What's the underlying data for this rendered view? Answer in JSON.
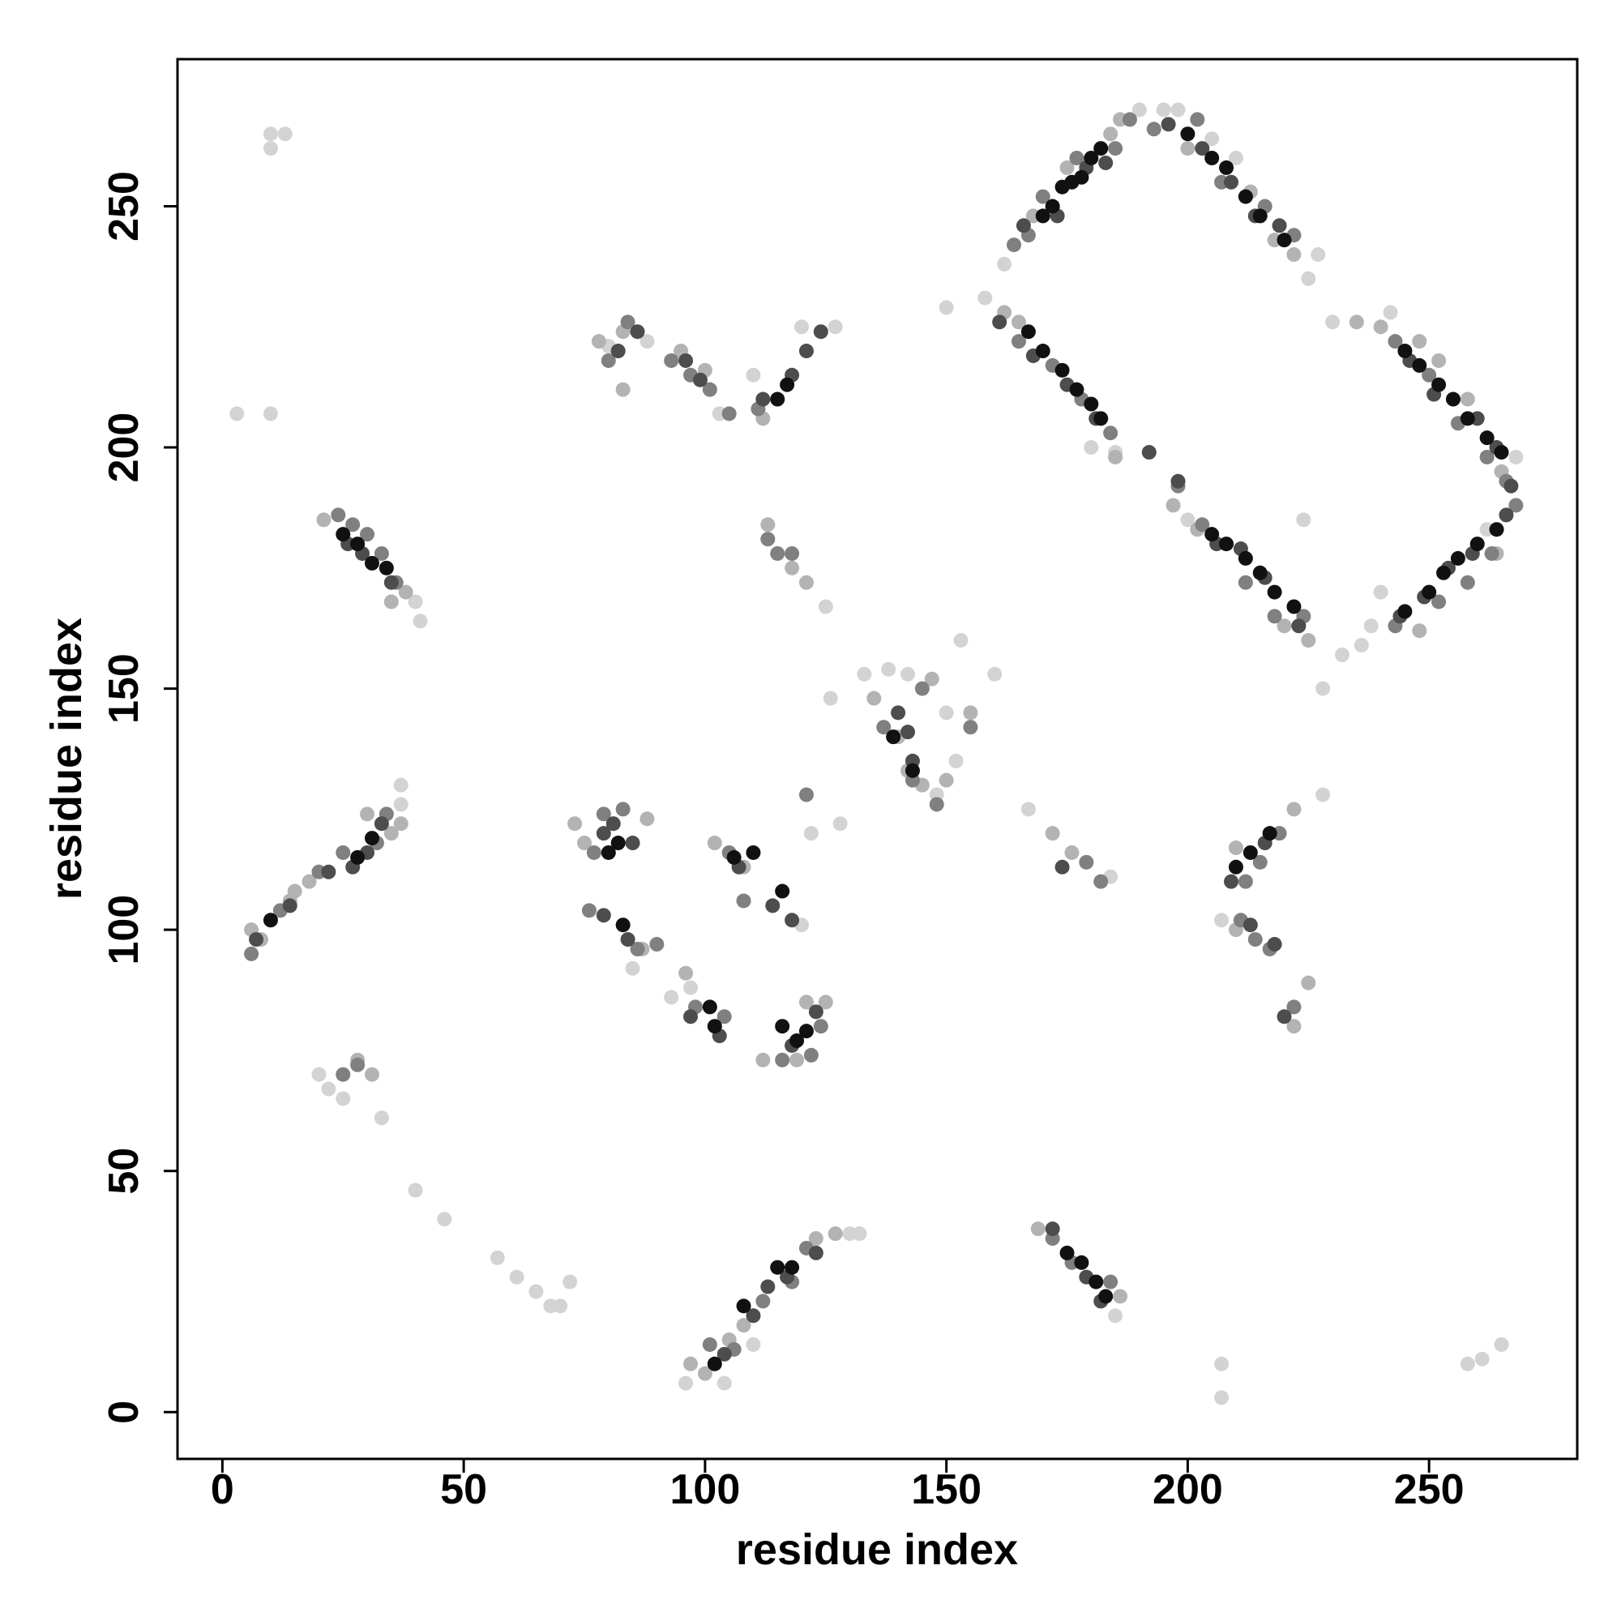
{
  "chart_data": {
    "type": "scatter",
    "xlabel": "residue index",
    "ylabel": "residue index",
    "xlim": [
      -9.3,
      280.7
    ],
    "ylim": [
      -9.7,
      280.5
    ],
    "xticks": [
      0,
      50,
      100,
      150,
      200,
      250
    ],
    "yticks": [
      0,
      50,
      100,
      150,
      200,
      250
    ],
    "series": [
      {
        "color": "#d3d3d3",
        "x": [
          10,
          13,
          10,
          3,
          10,
          37,
          37,
          40,
          41,
          20,
          22,
          25,
          33,
          40,
          46,
          57,
          61,
          65,
          68,
          70,
          72,
          80,
          88,
          85,
          93,
          97,
          103,
          110,
          125,
          127,
          128,
          130,
          132,
          133,
          138,
          142,
          150,
          153,
          160,
          158,
          162,
          150,
          152,
          148,
          180,
          185,
          190,
          195,
          198,
          205,
          210,
          225,
          227,
          230,
          232,
          228,
          236,
          238,
          242,
          262,
          268,
          207,
          207,
          258,
          261,
          265,
          240,
          122,
          126,
          200,
          207,
          167,
          184,
          96,
          104,
          110,
          120,
          228,
          185,
          120,
          224
        ],
        "y": [
          265,
          265,
          262,
          207,
          207,
          130,
          126,
          168,
          164,
          70,
          67,
          65,
          61,
          46,
          40,
          32,
          28,
          25,
          22,
          22,
          27,
          221,
          222,
          92,
          86,
          88,
          207,
          215,
          167,
          225,
          122,
          37,
          37,
          153,
          154,
          153,
          229,
          160,
          153,
          231,
          238,
          145,
          135,
          128,
          200,
          199,
          270,
          270,
          270,
          264,
          260,
          235,
          240,
          226,
          157,
          150,
          159,
          163,
          228,
          183,
          198,
          10,
          3,
          10,
          11,
          14,
          170,
          120,
          148,
          185,
          102,
          125,
          111,
          6,
          6,
          14,
          101,
          128,
          20,
          225,
          185
        ]
      },
      {
        "color": "#b3b3b3",
        "x": [
          6,
          8,
          15,
          18,
          35,
          37,
          28,
          31,
          35,
          38,
          21,
          78,
          83,
          95,
          100,
          112,
          113,
          118,
          121,
          75,
          73,
          88,
          87,
          96,
          102,
          108,
          112,
          119,
          121,
          125,
          97,
          100,
          105,
          108,
          123,
          127,
          135,
          140,
          142,
          145,
          147,
          150,
          155,
          162,
          165,
          168,
          175,
          184,
          186,
          200,
          213,
          218,
          222,
          185,
          197,
          202,
          220,
          225,
          235,
          248,
          258,
          265,
          264,
          248,
          169,
          172,
          176,
          186,
          210,
          222,
          225,
          222,
          210,
          240,
          252,
          30,
          83,
          14
        ],
        "y": [
          100,
          98,
          108,
          110,
          120,
          122,
          73,
          70,
          168,
          170,
          185,
          222,
          224,
          220,
          216,
          206,
          184,
          175,
          172,
          118,
          122,
          123,
          96,
          91,
          118,
          113,
          73,
          73,
          85,
          85,
          10,
          8,
          15,
          18,
          36,
          37,
          148,
          140,
          133,
          130,
          152,
          131,
          145,
          228,
          226,
          248,
          258,
          265,
          268,
          262,
          253,
          243,
          240,
          198,
          188,
          183,
          163,
          160,
          226,
          222,
          210,
          195,
          178,
          162,
          38,
          120,
          116,
          24,
          117,
          125,
          89,
          80,
          100,
          225,
          218,
          124,
          212,
          106
        ]
      },
      {
        "color": "#808080",
        "x": [
          6,
          12,
          20,
          25,
          32,
          34,
          25,
          28,
          24,
          27,
          30,
          33,
          36,
          80,
          84,
          93,
          97,
          101,
          105,
          111,
          113,
          115,
          118,
          121,
          79,
          77,
          83,
          76,
          86,
          90,
          98,
          104,
          105,
          116,
          122,
          124,
          101,
          106,
          112,
          118,
          121,
          137,
          143,
          145,
          148,
          155,
          164,
          167,
          170,
          177,
          185,
          188,
          193,
          202,
          207,
          216,
          222,
          165,
          172,
          178,
          184,
          198,
          203,
          212,
          218,
          224,
          243,
          250,
          256,
          262,
          266,
          268,
          243,
          252,
          258,
          263,
          172,
          176,
          184,
          179,
          182,
          212,
          215,
          219,
          214,
          217,
          222,
          211,
          108
        ],
        "y": [
          95,
          104,
          112,
          116,
          118,
          124,
          70,
          72,
          186,
          184,
          182,
          178,
          172,
          218,
          226,
          218,
          215,
          212,
          207,
          208,
          181,
          178,
          178,
          128,
          124,
          116,
          125,
          104,
          96,
          97,
          84,
          82,
          116,
          73,
          74,
          80,
          14,
          13,
          23,
          27,
          34,
          142,
          131,
          150,
          126,
          142,
          242,
          244,
          252,
          260,
          262,
          268,
          266,
          268,
          255,
          250,
          244,
          222,
          217,
          210,
          203,
          192,
          184,
          172,
          165,
          165,
          222,
          215,
          205,
          198,
          193,
          188,
          163,
          168,
          172,
          178,
          36,
          31,
          27,
          114,
          110,
          110,
          114,
          120,
          98,
          96,
          84,
          102,
          106
        ]
      },
      {
        "color": "#4d4d4d",
        "x": [
          7,
          14,
          22,
          27,
          30,
          33,
          26,
          29,
          35,
          86,
          82,
          96,
          99,
          112,
          118,
          121,
          124,
          79,
          81,
          85,
          79,
          84,
          97,
          103,
          107,
          114,
          118,
          123,
          104,
          110,
          113,
          117,
          123,
          140,
          142,
          143,
          166,
          173,
          179,
          183,
          196,
          203,
          209,
          214,
          219,
          161,
          168,
          175,
          181,
          192,
          198,
          206,
          211,
          216,
          223,
          246,
          251,
          260,
          264,
          267,
          244,
          249,
          254,
          259,
          266,
          172,
          179,
          182,
          174,
          209,
          216,
          213,
          218,
          220,
          118
        ],
        "y": [
          98,
          105,
          112,
          113,
          116,
          122,
          180,
          178,
          172,
          224,
          220,
          218,
          214,
          210,
          215,
          220,
          224,
          120,
          122,
          118,
          103,
          98,
          82,
          78,
          113,
          105,
          76,
          83,
          12,
          20,
          26,
          28,
          33,
          145,
          141,
          135,
          246,
          248,
          258,
          259,
          267,
          262,
          255,
          248,
          246,
          226,
          219,
          213,
          206,
          199,
          193,
          180,
          179,
          173,
          163,
          218,
          211,
          206,
          200,
          192,
          165,
          169,
          175,
          178,
          186,
          38,
          28,
          23,
          113,
          110,
          118,
          101,
          97,
          82,
          102
        ]
      },
      {
        "color": "#111111",
        "x": [
          10,
          25,
          28,
          31,
          34,
          28,
          31,
          82,
          80,
          83,
          115,
          117,
          101,
          102,
          116,
          119,
          121,
          102,
          108,
          115,
          118,
          116,
          110,
          143,
          139,
          170,
          172,
          174,
          176,
          178,
          180,
          182,
          200,
          205,
          208,
          212,
          215,
          220,
          167,
          170,
          174,
          177,
          180,
          182,
          205,
          208,
          212,
          215,
          218,
          222,
          245,
          248,
          252,
          255,
          258,
          262,
          265,
          245,
          250,
          253,
          256,
          260,
          264,
          175,
          178,
          181,
          183,
          210,
          213,
          217,
          106
        ],
        "y": [
          102,
          182,
          180,
          176,
          175,
          115,
          119,
          118,
          116,
          101,
          210,
          213,
          84,
          80,
          80,
          77,
          79,
          10,
          22,
          30,
          30,
          108,
          116,
          133,
          140,
          248,
          250,
          254,
          255,
          256,
          260,
          262,
          265,
          260,
          258,
          252,
          248,
          243,
          224,
          220,
          216,
          212,
          209,
          206,
          182,
          180,
          177,
          174,
          170,
          167,
          220,
          217,
          213,
          210,
          206,
          202,
          199,
          166,
          170,
          174,
          177,
          180,
          183,
          33,
          31,
          27,
          24,
          113,
          116,
          120,
          115
        ]
      }
    ]
  }
}
